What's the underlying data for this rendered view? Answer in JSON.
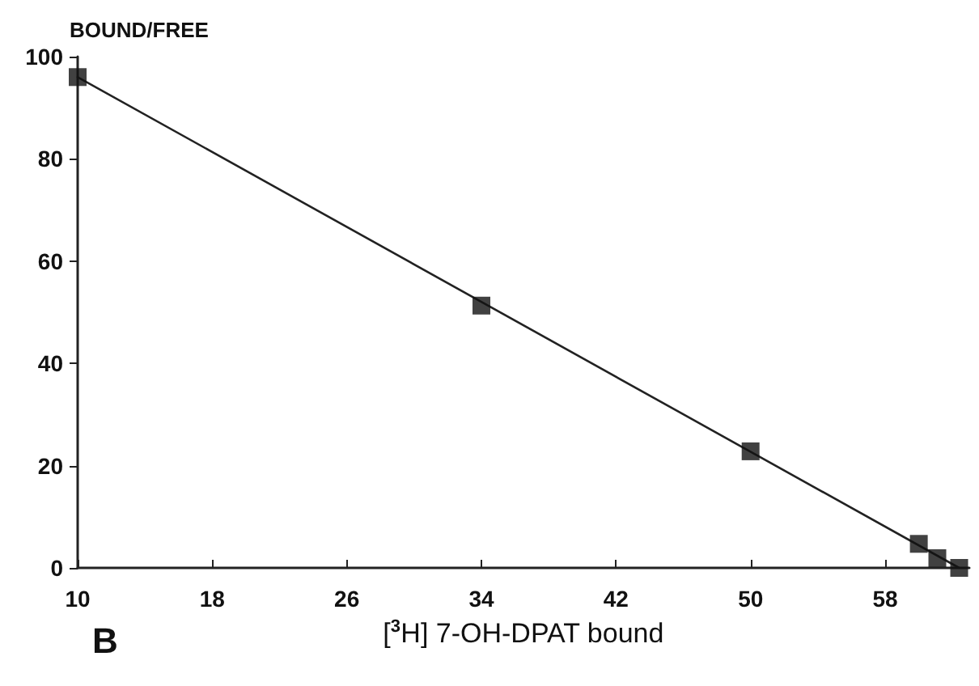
{
  "chart_data": {
    "type": "scatter",
    "ylabel": "BOUND/FREE",
    "xlabel": "[$^{3}$H] 7-OH-DPAT bound",
    "annotations": [
      "B"
    ],
    "series": [
      {
        "color": "#111111",
        "marker": "square",
        "x": [
          10,
          34,
          50,
          60,
          61.1,
          62.4
        ],
        "values": [
          96,
          51.3,
          22.8,
          4.7,
          1.9,
          0
        ]
      },
      {
        "type": "line",
        "color": "#222222",
        "x": [
          10,
          62.4
        ],
        "values": [
          96,
          0
        ],
        "marker": "none",
        "line_style": "solid"
      }
    ],
    "xlim": [
      10,
      63
    ],
    "xticks": [
      10,
      18,
      26,
      34,
      42,
      50,
      58
    ],
    "ylim": [
      0,
      100
    ],
    "yticks": [
      0,
      20,
      40,
      60,
      80,
      100
    ],
    "grid": false
  }
}
